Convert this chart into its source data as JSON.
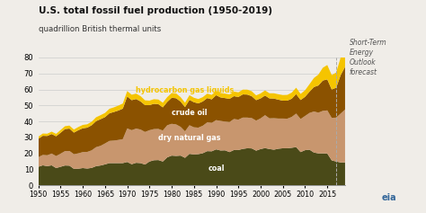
{
  "title": "U.S. total fossil fuel production (1950-2019)",
  "subtitle": "quadrillion British thermal units",
  "forecast_label": "Short-Term\nEnergy\nOutlook\nforecast",
  "forecast_year": 2017,
  "ylim": [
    0,
    80
  ],
  "yticks": [
    0,
    10,
    20,
    30,
    40,
    50,
    60,
    70,
    80
  ],
  "xticks": [
    1950,
    1955,
    1960,
    1965,
    1970,
    1975,
    1980,
    1985,
    1990,
    1995,
    2000,
    2005,
    2010,
    2015
  ],
  "colors": {
    "coal": "#4a4a18",
    "dry_natural_gas": "#c8966e",
    "crude_oil": "#8b5200",
    "hydrocarbon_gas_liquids": "#f5c400"
  },
  "labels": {
    "coal": "coal",
    "dry_natural_gas": "dry natural gas",
    "crude_oil": "crude oil",
    "hydrocarbon_gas_liquids": "hydrocarbon gas liquids"
  },
  "background_color": "#f0ede8",
  "years": [
    1950,
    1951,
    1952,
    1953,
    1954,
    1955,
    1956,
    1957,
    1958,
    1959,
    1960,
    1961,
    1962,
    1963,
    1964,
    1965,
    1966,
    1967,
    1968,
    1969,
    1970,
    1971,
    1972,
    1973,
    1974,
    1975,
    1976,
    1977,
    1978,
    1979,
    1980,
    1981,
    1982,
    1983,
    1984,
    1985,
    1986,
    1987,
    1988,
    1989,
    1990,
    1991,
    1992,
    1993,
    1994,
    1995,
    1996,
    1997,
    1998,
    1999,
    2000,
    2001,
    2002,
    2003,
    2004,
    2005,
    2006,
    2007,
    2008,
    2009,
    2010,
    2011,
    2012,
    2013,
    2014,
    2015,
    2016,
    2017,
    2018,
    2019
  ],
  "coal": [
    11.6,
    12.5,
    12.0,
    12.5,
    10.8,
    11.6,
    12.4,
    12.3,
    10.3,
    10.4,
    10.8,
    10.5,
    10.9,
    12.0,
    12.4,
    13.1,
    13.9,
    13.9,
    13.9,
    13.9,
    14.6,
    13.2,
    14.1,
    13.9,
    13.0,
    14.9,
    15.7,
    15.8,
    14.9,
    17.5,
    18.6,
    18.4,
    18.6,
    17.2,
    19.7,
    19.3,
    19.5,
    20.1,
    21.4,
    21.3,
    22.5,
    21.8,
    21.9,
    20.8,
    22.1,
    22.1,
    22.8,
    23.2,
    23.1,
    21.7,
    22.7,
    23.3,
    22.7,
    22.3,
    22.9,
    23.2,
    23.2,
    23.5,
    23.9,
    20.8,
    22.0,
    22.3,
    20.5,
    20.0,
    20.0,
    19.9,
    15.6,
    14.9,
    14.3,
    14.3
  ],
  "dry_natural_gas": [
    6.0,
    6.5,
    6.8,
    7.4,
    7.5,
    8.2,
    9.0,
    9.2,
    9.2,
    9.6,
    10.0,
    10.4,
    11.0,
    11.9,
    12.3,
    13.1,
    13.9,
    14.1,
    14.5,
    15.0,
    21.0,
    21.3,
    21.4,
    21.0,
    20.4,
    19.6,
    19.5,
    19.5,
    19.4,
    20.1,
    19.9,
    19.7,
    18.0,
    16.6,
    17.9,
    17.0,
    16.6,
    17.2,
    18.0,
    17.8,
    18.3,
    18.5,
    18.0,
    18.8,
    19.4,
    19.0,
    19.6,
    19.2,
    19.0,
    18.8,
    19.2,
    20.6,
    19.2,
    19.7,
    18.9,
    18.6,
    18.5,
    19.3,
    21.0,
    20.7,
    21.4,
    23.0,
    25.7,
    25.5,
    26.6,
    27.0,
    26.6,
    27.5,
    30.6,
    33.1
  ],
  "crude_oil": [
    11.5,
    12.0,
    12.1,
    12.2,
    12.4,
    13.1,
    13.8,
    14.0,
    13.5,
    14.5,
    14.9,
    15.2,
    15.7,
    16.3,
    16.7,
    16.5,
    17.3,
    17.9,
    18.4,
    19.1,
    20.0,
    18.8,
    18.5,
    17.6,
    16.8,
    15.7,
    15.8,
    15.5,
    14.5,
    14.6,
    16.3,
    16.4,
    15.8,
    15.2,
    15.9,
    15.7,
    15.2,
    15.2,
    15.2,
    14.7,
    15.6,
    14.7,
    14.7,
    14.5,
    14.3,
    14.2,
    14.5,
    14.4,
    13.7,
    12.8,
    12.5,
    12.3,
    12.5,
    12.3,
    11.8,
    11.2,
    11.3,
    11.4,
    12.2,
    11.9,
    12.0,
    13.3,
    15.3,
    17.0,
    19.0,
    19.4,
    17.8,
    18.7,
    24.0,
    26.8
  ],
  "hgl": [
    1.3,
    1.4,
    1.4,
    1.5,
    1.5,
    1.7,
    1.8,
    1.9,
    1.9,
    2.0,
    2.1,
    2.1,
    2.2,
    2.4,
    2.5,
    2.6,
    2.8,
    2.9,
    3.1,
    3.2,
    3.4,
    3.4,
    3.4,
    3.3,
    3.0,
    2.8,
    2.9,
    2.9,
    2.9,
    3.0,
    3.0,
    3.0,
    2.8,
    2.7,
    2.9,
    2.8,
    2.7,
    2.7,
    2.8,
    2.8,
    2.8,
    2.8,
    2.8,
    2.8,
    2.9,
    2.9,
    3.0,
    3.1,
    3.1,
    3.0,
    3.1,
    3.2,
    3.2,
    3.3,
    3.4,
    3.5,
    3.6,
    3.8,
    4.0,
    3.8,
    4.1,
    4.7,
    5.7,
    6.8,
    8.0,
    9.0,
    9.0,
    9.5,
    11.0,
    12.0
  ]
}
